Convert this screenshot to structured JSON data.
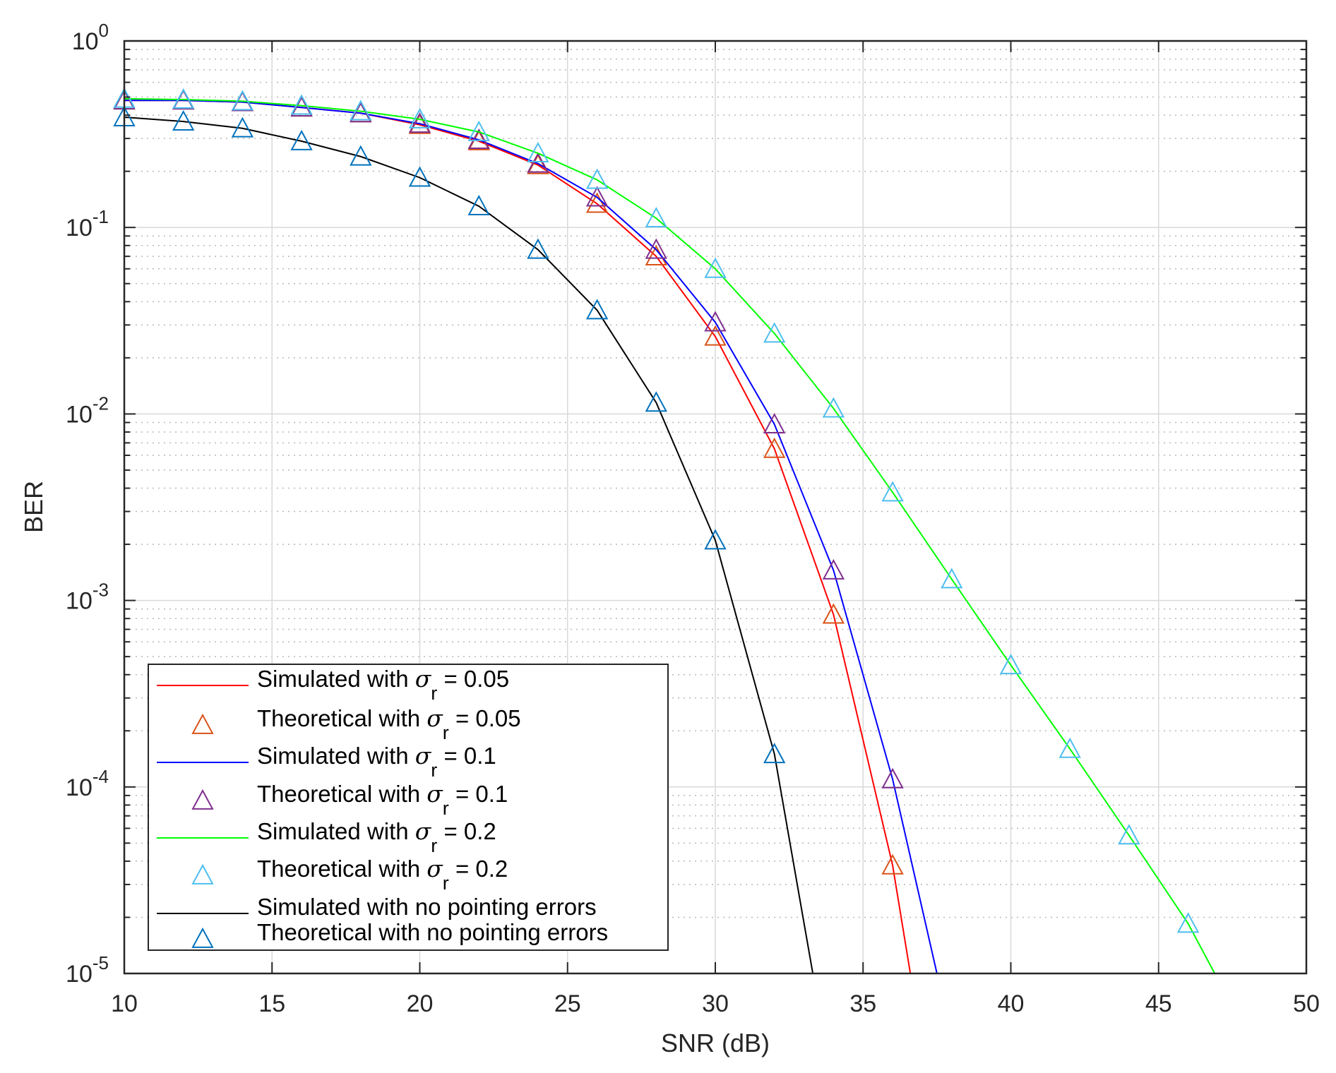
{
  "chart_data": {
    "type": "line",
    "title": "",
    "xlabel": "SNR (dB)",
    "ylabel": "BER",
    "xlim": [
      10,
      50
    ],
    "ylim": [
      1e-05,
      1
    ],
    "yscale": "log",
    "grid": true,
    "legend_position": "bottom-left",
    "x_ticks": [
      "10",
      "15",
      "20",
      "25",
      "30",
      "35",
      "40",
      "45",
      "50"
    ],
    "y_ticks": [
      {
        "base": "10",
        "exp": "0"
      },
      {
        "base": "10",
        "exp": "-1"
      },
      {
        "base": "10",
        "exp": "-2"
      },
      {
        "base": "10",
        "exp": "-3"
      },
      {
        "base": "10",
        "exp": "-4"
      },
      {
        "base": "10",
        "exp": "-5"
      }
    ],
    "series": [
      {
        "name": "Simulated with σr = 0.05",
        "label": {
          "pre": "Simulated with ",
          "sym": "σ",
          "sub": "r",
          "post": " = 0.05"
        },
        "kind": "line",
        "color": "#FF0000",
        "x": [
          10,
          12,
          14,
          16,
          18,
          20,
          22,
          24,
          26,
          28,
          30,
          32,
          34,
          36,
          36.6
        ],
        "y": [
          0.48,
          0.48,
          0.47,
          0.44,
          0.41,
          0.355,
          0.29,
          0.216,
          0.134,
          0.07,
          0.026,
          0.0065,
          0.00084,
          3.8e-05,
          1e-05
        ]
      },
      {
        "name": "Theoretical with σr = 0.05",
        "label": {
          "pre": "Theoretical with ",
          "sym": "σ",
          "sub": "r",
          "post": " = 0.05"
        },
        "kind": "marker",
        "color": "#D95319",
        "x": [
          10,
          12,
          14,
          16,
          18,
          20,
          22,
          24,
          26,
          28,
          30,
          32,
          34,
          36
        ],
        "y": [
          0.48,
          0.48,
          0.47,
          0.44,
          0.41,
          0.355,
          0.29,
          0.216,
          0.134,
          0.07,
          0.026,
          0.0065,
          0.00084,
          3.8e-05
        ]
      },
      {
        "name": "Simulated with σr = 0.1",
        "label": {
          "pre": "Simulated with ",
          "sym": "σ",
          "sub": "r",
          "post": " = 0.1"
        },
        "kind": "line",
        "color": "#0000FF",
        "x": [
          10,
          12,
          14,
          16,
          18,
          20,
          22,
          24,
          26,
          28,
          30,
          32,
          34,
          36,
          37.5
        ],
        "y": [
          0.48,
          0.48,
          0.47,
          0.44,
          0.41,
          0.36,
          0.295,
          0.22,
          0.145,
          0.076,
          0.031,
          0.0088,
          0.00145,
          0.00011,
          1e-05
        ]
      },
      {
        "name": "Theoretical with σr = 0.1",
        "label": {
          "pre": "Theoretical with ",
          "sym": "σ",
          "sub": "r",
          "post": " = 0.1"
        },
        "kind": "marker",
        "color": "#7E2F8E",
        "x": [
          10,
          12,
          14,
          16,
          18,
          20,
          22,
          24,
          26,
          28,
          30,
          32,
          34,
          36
        ],
        "y": [
          0.48,
          0.48,
          0.47,
          0.44,
          0.41,
          0.36,
          0.295,
          0.22,
          0.145,
          0.076,
          0.031,
          0.0088,
          0.00145,
          0.00011
        ]
      },
      {
        "name": "Simulated with σr = 0.2",
        "label": {
          "pre": "Simulated with ",
          "sym": "σ",
          "sub": "r",
          "post": " = 0.2"
        },
        "kind": "line",
        "color": "#00FF00",
        "x": [
          10,
          12,
          14,
          16,
          18,
          20,
          22,
          24,
          26,
          28,
          30,
          32,
          34,
          36,
          38,
          40,
          42,
          44,
          46,
          46.9
        ],
        "y": [
          0.49,
          0.485,
          0.475,
          0.45,
          0.42,
          0.38,
          0.325,
          0.25,
          0.18,
          0.112,
          0.06,
          0.027,
          0.0107,
          0.0038,
          0.0013,
          0.00045,
          0.00016,
          5.5e-05,
          1.85e-05,
          1e-05
        ]
      },
      {
        "name": "Theoretical with σr = 0.2",
        "label": {
          "pre": "Theoretical with ",
          "sym": "σ",
          "sub": "r",
          "post": " = 0.2"
        },
        "kind": "marker",
        "color": "#4DBEEE",
        "x": [
          10,
          12,
          14,
          16,
          18,
          20,
          22,
          24,
          26,
          28,
          30,
          32,
          34,
          36,
          38,
          40,
          42,
          44,
          46
        ],
        "y": [
          0.49,
          0.485,
          0.475,
          0.45,
          0.42,
          0.38,
          0.325,
          0.25,
          0.18,
          0.112,
          0.06,
          0.027,
          0.0107,
          0.0038,
          0.0013,
          0.00045,
          0.00016,
          5.5e-05,
          1.85e-05
        ]
      },
      {
        "name": "Simulated with no pointing errors",
        "label": {
          "pre": "Simulated with no pointing errors",
          "sym": "",
          "sub": "",
          "post": ""
        },
        "kind": "line",
        "color": "#000000",
        "x": [
          10,
          12,
          14,
          16,
          18,
          20,
          22,
          24,
          26,
          28,
          30,
          32,
          33.3
        ],
        "y": [
          0.39,
          0.37,
          0.34,
          0.29,
          0.24,
          0.185,
          0.13,
          0.076,
          0.036,
          0.0115,
          0.0021,
          0.00015,
          1e-05
        ]
      },
      {
        "name": "Theoretical with no pointing errors",
        "label": {
          "pre": "Theoretical with no pointing errors",
          "sym": "",
          "sub": "",
          "post": ""
        },
        "kind": "marker",
        "color": "#0072BD",
        "x": [
          10,
          12,
          14,
          16,
          18,
          20,
          22,
          24,
          26,
          28,
          30,
          32
        ],
        "y": [
          0.39,
          0.37,
          0.34,
          0.29,
          0.24,
          0.185,
          0.13,
          0.076,
          0.036,
          0.0115,
          0.0021,
          0.00015
        ]
      }
    ]
  }
}
